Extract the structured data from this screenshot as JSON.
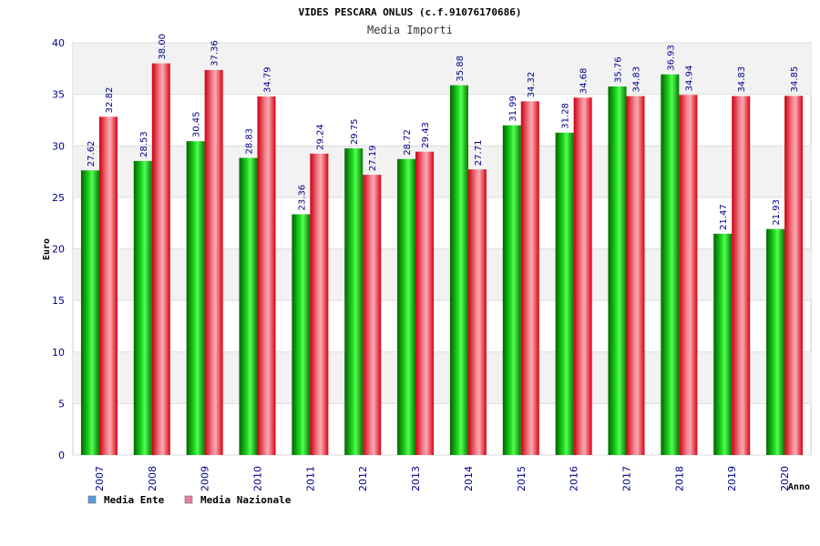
{
  "chart_data": {
    "type": "bar",
    "title": "VIDES PESCARA ONLUS (c.f.91076170686)",
    "subtitle": "Media Importi",
    "xlabel": "Anno",
    "ylabel": "Euro",
    "ylim": [
      0,
      40
    ],
    "yticks": [
      "0",
      "5",
      "10",
      "15",
      "20",
      "25",
      "30",
      "35",
      "40"
    ],
    "grid": true,
    "legend_position": "bottom-left",
    "categories": [
      "2007",
      "2008",
      "2009",
      "2010",
      "2011",
      "2012",
      "2013",
      "2014",
      "2015",
      "2016",
      "2017",
      "2018",
      "2019",
      "2020"
    ],
    "series": [
      {
        "name": "Media Ente",
        "color": "#00cc00",
        "legend_color": "#5b9bd5",
        "values": [
          27.62,
          28.53,
          30.45,
          28.83,
          23.36,
          29.75,
          28.72,
          35.88,
          31.99,
          31.28,
          35.76,
          36.93,
          21.47,
          21.93
        ],
        "labels": [
          "27.62",
          "28.53",
          "30.45",
          "28.83",
          "23.36",
          "29.75",
          "28.72",
          "35.88",
          "31.99",
          "31.28",
          "35.76",
          "36.93",
          "21.47",
          "21.93"
        ]
      },
      {
        "name": "Media Nazionale",
        "color": "#ee1122",
        "legend_color": "#e87fa8",
        "values": [
          32.82,
          38.0,
          37.36,
          34.79,
          29.24,
          27.19,
          29.43,
          27.71,
          34.32,
          34.68,
          34.83,
          34.94,
          34.83,
          34.85
        ],
        "labels": [
          "32.82",
          "38.00",
          "37.36",
          "34.79",
          "29.24",
          "27.19",
          "29.43",
          "27.71",
          "34.32",
          "34.68",
          "34.83",
          "34.94",
          "34.83",
          "34.85"
        ]
      }
    ]
  }
}
